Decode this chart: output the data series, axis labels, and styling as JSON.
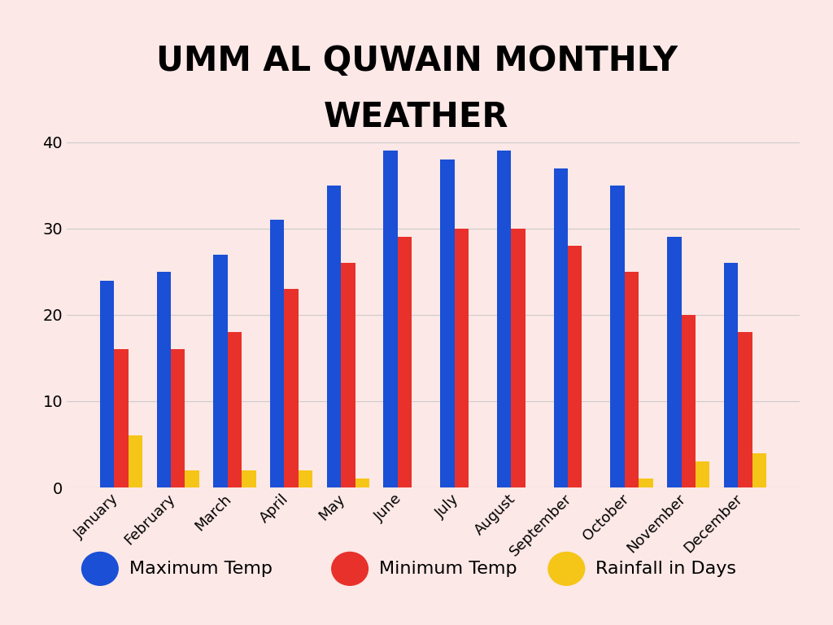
{
  "title_line1": "UMM AL QUWAIN MONTHLY",
  "title_line2": "WEATHER",
  "months": [
    "January",
    "February",
    "March",
    "April",
    "May",
    "June",
    "July",
    "August",
    "September",
    "October",
    "November",
    "December"
  ],
  "max_temp": [
    24,
    25,
    27,
    31,
    35,
    39,
    38,
    39,
    37,
    35,
    29,
    26
  ],
  "min_temp": [
    16,
    16,
    18,
    23,
    26,
    29,
    30,
    30,
    28,
    25,
    20,
    18
  ],
  "rainfall": [
    6,
    2,
    2,
    2,
    1,
    0,
    0,
    0,
    0,
    1,
    3,
    4
  ],
  "bar_color_max": "#1a4fd6",
  "bar_color_min": "#e8312a",
  "bar_color_rain": "#f5c518",
  "background_color": "#fce8e6",
  "title_fontsize": 30,
  "ylim": [
    0,
    42
  ],
  "yticks": [
    0,
    10,
    20,
    30,
    40
  ],
  "legend_fontsize": 16,
  "legend_labels": [
    "Maximum Temp",
    "Minimum Temp",
    "Rainfall in Days"
  ],
  "bar_width": 0.25
}
